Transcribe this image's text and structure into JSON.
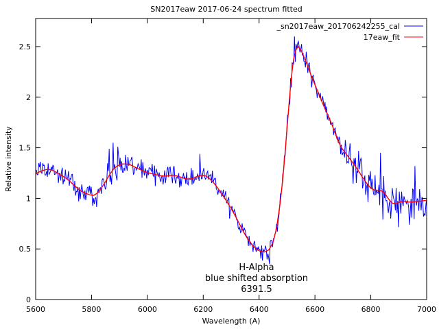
{
  "window": {
    "background": "#ffffff"
  },
  "title": "SN2017eaw 2017-06-24 spectrum fitted",
  "x_axis": {
    "label": "Wavelength (A)",
    "min": 5600,
    "max": 7000,
    "tick_labels": [
      "5600",
      "5800",
      "6000",
      "6200",
      "6400",
      "6600",
      "6800",
      "7000"
    ],
    "tick_values": [
      5600,
      5800,
      6000,
      6200,
      6400,
      6600,
      6800,
      7000
    ]
  },
  "y_axis": {
    "label": "Relative intensity",
    "min": 0,
    "max": 2.78,
    "tick_labels": [
      "0",
      "0.5",
      "1",
      "1.5",
      "2",
      "2.5"
    ],
    "tick_values": [
      0,
      0.5,
      1,
      1.5,
      2,
      2.5
    ]
  },
  "legend": {
    "entries": [
      {
        "label": "_sn2017eaw_201706242255_cal",
        "color": "#0000ff"
      },
      {
        "label": "17eaw_fit",
        "color": "#ff0000"
      }
    ]
  },
  "annotation": {
    "line1": "H-Alpha",
    "line2": "blue shifted absorption",
    "line3": "6391.5",
    "center_wavelength": 6391.5
  },
  "colors": {
    "data_line": "#0000ff",
    "fit_line": "#ff0000",
    "axis": "#000000",
    "background": "#ffffff"
  },
  "chart_data": {
    "type": "line",
    "xlabel": "Wavelength (A)",
    "ylabel": "Relative intensity",
    "title": "SN2017eaw 2017-06-24 spectrum fitted",
    "xlim": [
      5600,
      7000
    ],
    "ylim": [
      0,
      2.78
    ],
    "grid": false,
    "legend_position": "top-right-inside",
    "series": [
      {
        "name": "17eaw_fit",
        "color": "#ff0000",
        "style": "smooth",
        "points": [
          [
            5600,
            1.24
          ],
          [
            5612,
            1.26
          ],
          [
            5625,
            1.275
          ],
          [
            5638,
            1.285
          ],
          [
            5650,
            1.285
          ],
          [
            5662,
            1.275
          ],
          [
            5675,
            1.255
          ],
          [
            5690,
            1.23
          ],
          [
            5705,
            1.205
          ],
          [
            5720,
            1.175
          ],
          [
            5735,
            1.135
          ],
          [
            5750,
            1.1
          ],
          [
            5765,
            1.07
          ],
          [
            5780,
            1.048
          ],
          [
            5795,
            1.035
          ],
          [
            5808,
            1.03
          ],
          [
            5820,
            1.05
          ],
          [
            5835,
            1.1
          ],
          [
            5850,
            1.165
          ],
          [
            5865,
            1.235
          ],
          [
            5880,
            1.295
          ],
          [
            5895,
            1.325
          ],
          [
            5910,
            1.34
          ],
          [
            5925,
            1.34
          ],
          [
            5940,
            1.33
          ],
          [
            5955,
            1.31
          ],
          [
            5970,
            1.29
          ],
          [
            5985,
            1.27
          ],
          [
            6000,
            1.255
          ],
          [
            6015,
            1.245
          ],
          [
            6030,
            1.235
          ],
          [
            6045,
            1.225
          ],
          [
            6060,
            1.22
          ],
          [
            6075,
            1.222
          ],
          [
            6090,
            1.228
          ],
          [
            6105,
            1.222
          ],
          [
            6120,
            1.21
          ],
          [
            6135,
            1.195
          ],
          [
            6150,
            1.19
          ],
          [
            6165,
            1.2
          ],
          [
            6180,
            1.218
          ],
          [
            6195,
            1.228
          ],
          [
            6210,
            1.222
          ],
          [
            6225,
            1.19
          ],
          [
            6240,
            1.145
          ],
          [
            6255,
            1.09
          ],
          [
            6270,
            1.03
          ],
          [
            6285,
            0.965
          ],
          [
            6300,
            0.9
          ],
          [
            6315,
            0.825
          ],
          [
            6330,
            0.745
          ],
          [
            6345,
            0.665
          ],
          [
            6360,
            0.595
          ],
          [
            6375,
            0.54
          ],
          [
            6390,
            0.5
          ],
          [
            6405,
            0.475
          ],
          [
            6420,
            0.47
          ],
          [
            6435,
            0.49
          ],
          [
            6450,
            0.565
          ],
          [
            6462,
            0.7
          ],
          [
            6474,
            0.92
          ],
          [
            6486,
            1.22
          ],
          [
            6496,
            1.55
          ],
          [
            6506,
            1.9
          ],
          [
            6514,
            2.15
          ],
          [
            6522,
            2.35
          ],
          [
            6530,
            2.46
          ],
          [
            6540,
            2.5
          ],
          [
            6550,
            2.465
          ],
          [
            6562,
            2.39
          ],
          [
            6575,
            2.3
          ],
          [
            6590,
            2.19
          ],
          [
            6605,
            2.09
          ],
          [
            6620,
            1.99
          ],
          [
            6635,
            1.89
          ],
          [
            6650,
            1.8
          ],
          [
            6665,
            1.7
          ],
          [
            6680,
            1.585
          ],
          [
            6695,
            1.5
          ],
          [
            6710,
            1.445
          ],
          [
            6725,
            1.39
          ],
          [
            6740,
            1.335
          ],
          [
            6755,
            1.275
          ],
          [
            6770,
            1.21
          ],
          [
            6785,
            1.15
          ],
          [
            6800,
            1.1
          ],
          [
            6812,
            1.082
          ],
          [
            6825,
            1.08
          ],
          [
            6838,
            1.075
          ],
          [
            6850,
            1.05
          ],
          [
            6862,
            1.0
          ],
          [
            6875,
            0.955
          ],
          [
            6888,
            0.945
          ],
          [
            6900,
            0.96
          ],
          [
            6915,
            0.972
          ],
          [
            6930,
            0.965
          ],
          [
            6945,
            0.963
          ],
          [
            6960,
            0.966
          ],
          [
            6975,
            0.972
          ],
          [
            6990,
            0.977
          ],
          [
            7000,
            0.98
          ]
        ]
      },
      {
        "name": "_sn2017eaw_201706242255_cal",
        "color": "#0000ff",
        "style": "noisy-follows-fit",
        "noise": {
          "seed": 12345,
          "step_angstrom": 2.8,
          "amplitude_regions": [
            [
              5600,
              5850,
              0.055
            ],
            [
              5850,
              5960,
              0.08
            ],
            [
              5960,
              6240,
              0.065
            ],
            [
              6240,
              6460,
              0.05
            ],
            [
              6460,
              6620,
              0.065
            ],
            [
              6620,
              6700,
              0.055
            ],
            [
              6700,
              7000,
              0.105
            ]
          ],
          "outlier_spikes": [
            [
              5755,
              0.97
            ],
            [
              5805,
              0.925
            ],
            [
              5818,
              0.915
            ],
            [
              5862,
              1.49
            ],
            [
              5877,
              1.55
            ],
            [
              5893,
              1.51
            ],
            [
              6187,
              1.44
            ],
            [
              6295,
              0.8
            ],
            [
              6412,
              0.385
            ],
            [
              6437,
              0.35
            ],
            [
              6527,
              2.6
            ],
            [
              6542,
              2.55
            ],
            [
              6756,
              1.47
            ],
            [
              6836,
              1.45
            ],
            [
              6842,
              0.79
            ],
            [
              6870,
              0.8
            ],
            [
              6898,
              0.715
            ],
            [
              6938,
              0.74
            ],
            [
              6957,
              1.32
            ]
          ]
        }
      }
    ]
  }
}
